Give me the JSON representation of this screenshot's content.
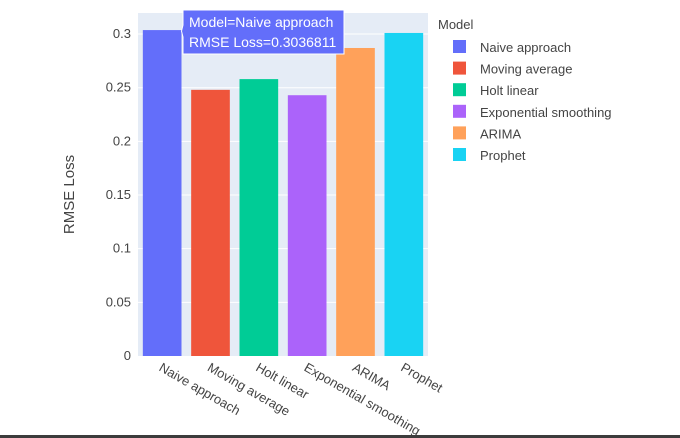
{
  "chart_data": {
    "type": "bar",
    "categories": [
      "Naive approach",
      "Moving average",
      "Holt linear",
      "Exponential smoothing",
      "ARIMA",
      "Prophet"
    ],
    "values": [
      0.3036811,
      0.248,
      0.258,
      0.243,
      0.287,
      0.301
    ],
    "colors": [
      "#636efa",
      "#EF553B",
      "#00cc96",
      "#ab63fa",
      "#FFA15A",
      "#19d3f3"
    ],
    "xlabel": "",
    "ylabel": "RMSE Loss",
    "ylim": [
      0,
      0.3196
    ],
    "yticks": [
      "0",
      "0.05",
      "0.1",
      "0.15",
      "0.2",
      "0.25",
      "0.3"
    ],
    "ytick_values": [
      0,
      0.05,
      0.1,
      0.15,
      0.2,
      0.25,
      0.3
    ],
    "grid": true,
    "legend_title": "Model",
    "legend_position": "right",
    "plot_background": "#e5ecf6",
    "hover": {
      "category_index": 0,
      "line1": "Model=Naive approach",
      "line2": "RMSE Loss=0.3036811"
    }
  }
}
